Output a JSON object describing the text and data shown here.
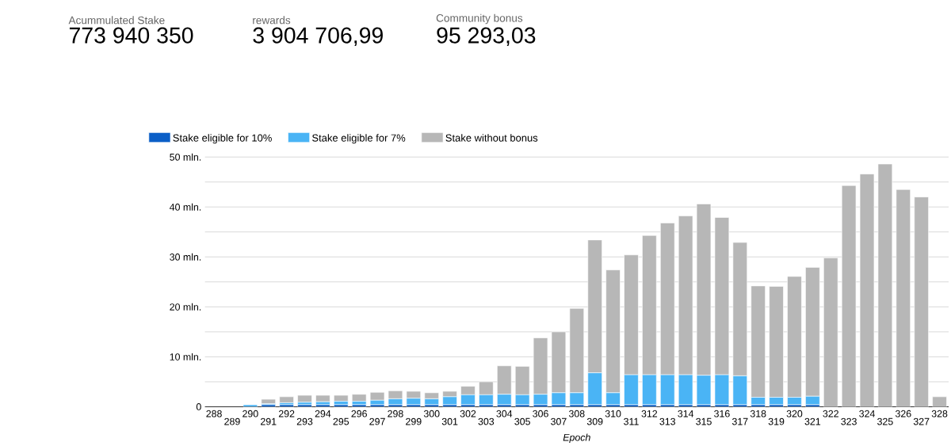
{
  "chart_data": {
    "type": "bar",
    "stacked": true,
    "annotations": [
      "Acummulated Stake",
      "773 940 350",
      "rewards",
      "3 904 706,99",
      "Community bonus",
      "95 293,03"
    ],
    "xlabel": "Epoch",
    "categories": [
      "288",
      "289",
      "290",
      "291",
      "292",
      "293",
      "294",
      "295",
      "296",
      "297",
      "298",
      "299",
      "300",
      "301",
      "302",
      "303",
      "304",
      "305",
      "306",
      "307",
      "308",
      "309",
      "310",
      "311",
      "312",
      "313",
      "314",
      "315",
      "316",
      "317",
      "318",
      "319",
      "320",
      "321",
      "322",
      "323",
      "324",
      "325",
      "326",
      "327",
      "328"
    ],
    "series": [
      {
        "name": "Stake eligible for 10%",
        "color": "#0b5fc7",
        "values": [
          0,
          0,
          0,
          0.4,
          0.4,
          0.4,
          0.4,
          0.4,
          0.4,
          0.4,
          0.4,
          0.4,
          0.4,
          0.4,
          0.4,
          0.4,
          0.4,
          0.4,
          0.4,
          0.4,
          0.4,
          0.4,
          0.4,
          0.4,
          0.4,
          0.4,
          0.4,
          0.4,
          0.4,
          0.4,
          0.4,
          0.4,
          0.4,
          0.4,
          0,
          0,
          0,
          0,
          0,
          0,
          0
        ]
      },
      {
        "name": "Stake eligible for 7%",
        "color": "#4ab4f5",
        "values": [
          0,
          0,
          0.4,
          0.2,
          0.4,
          0.5,
          0.6,
          0.7,
          0.7,
          0.9,
          1.2,
          1.3,
          1.2,
          1.6,
          2.0,
          2.0,
          2.1,
          2.0,
          2.1,
          2.4,
          2.4,
          6.4,
          2.4,
          6.0,
          6.0,
          6.0,
          6.0,
          5.9,
          6.0,
          5.8,
          1.5,
          1.5,
          1.5,
          1.7,
          0,
          0,
          0,
          0,
          0,
          0,
          0
        ]
      },
      {
        "name": "Stake without bonus",
        "color": "#b7b7b7",
        "values": [
          0,
          0,
          0,
          0.9,
          1.2,
          1.4,
          1.3,
          1.2,
          1.4,
          1.6,
          1.6,
          1.4,
          1.2,
          1.1,
          1.7,
          2.6,
          5.7,
          5.7,
          11.3,
          12.2,
          16.9,
          26.6,
          24.6,
          24.0,
          27.9,
          30.4,
          31.8,
          34.3,
          31.5,
          26.7,
          22.3,
          22.2,
          24.2,
          25.8,
          29.8,
          44.3,
          46.6,
          48.6,
          43.5,
          42.0,
          2.0
        ]
      }
    ],
    "ylim": [
      0,
      50
    ],
    "yticks": [
      0,
      {
        "value": 5,
        "label": null
      },
      {
        "value": 10,
        "label": "10 mln."
      },
      {
        "value": 15,
        "label": null
      },
      {
        "value": 20,
        "label": "20 mln."
      },
      {
        "value": 25,
        "label": null
      },
      {
        "value": 30,
        "label": "30 mln."
      },
      {
        "value": 35,
        "label": null
      },
      {
        "value": 40,
        "label": "40 mln."
      },
      {
        "value": 45,
        "label": null
      },
      {
        "value": 50,
        "label": "50 mln."
      }
    ],
    "grid": "y",
    "legend": "top left"
  }
}
